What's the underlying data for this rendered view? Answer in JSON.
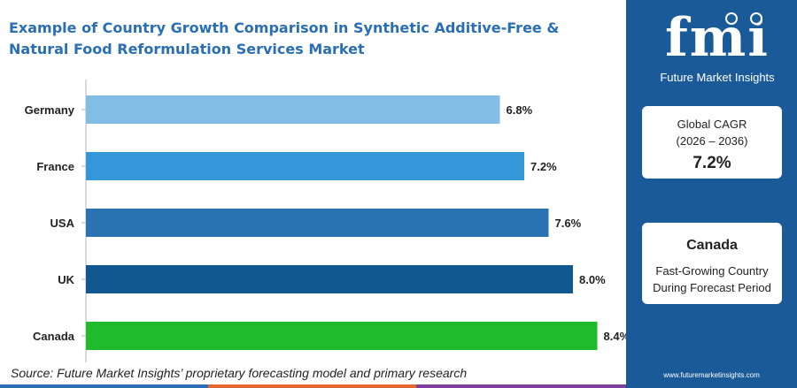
{
  "title": "Example of Country Growth Comparison in Synthetic Additive-Free & Natural Food Reformulation Services Market",
  "source": "Source: Future Market Insights’ proprietary forecasting model and primary research",
  "chart_data": {
    "type": "bar",
    "orientation": "horizontal",
    "categories": [
      "Germany",
      "France",
      "USA",
      "UK",
      "Canada"
    ],
    "values": [
      6.8,
      7.2,
      7.6,
      8.0,
      8.4
    ],
    "value_labels": [
      "6.8%",
      "7.2%",
      "7.6%",
      "8.0%",
      "8.4%"
    ],
    "colors": [
      "#82bde6",
      "#3497da",
      "#2a73b3",
      "#115891",
      "#1fbb2c"
    ],
    "title": "",
    "xlabel": "",
    "ylabel": "",
    "xlim": [
      0,
      9.6
    ],
    "grid": false,
    "legend": "none"
  },
  "sidebar": {
    "logo_letters": "fmi",
    "logo_tagline": "Future Market Insights",
    "cagr_label": "Global CAGR",
    "cagr_period": "(2026 – 2036)",
    "cagr_value": "7.2%",
    "country_name": "Canada",
    "country_desc_line1": "Fast-Growing Country",
    "country_desc_line2": "During Forecast Period",
    "website": "www.futuremarketinsights.com"
  },
  "colors": {
    "title": "#2a6fb5",
    "sidebar": "#1a5a99",
    "footer_segments": [
      "#2a6fb5",
      "#e8672f",
      "#7b3fa0"
    ]
  }
}
